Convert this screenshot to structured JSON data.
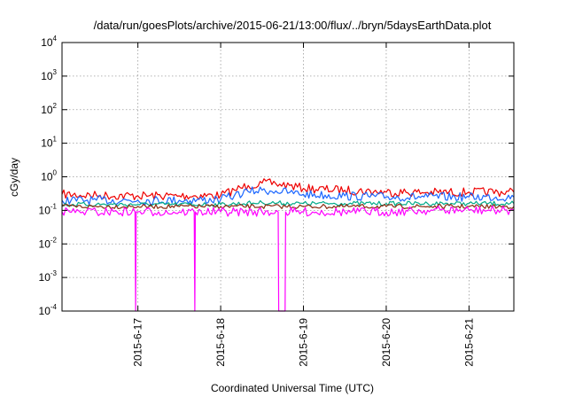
{
  "chart_data": {
    "type": "line",
    "title": "/data/run/goesPlots/archive/2015-06-21/13:00/flux/../bryn/5daysEarthData.plot",
    "xlabel": "Coordinated Universal Time (UTC)",
    "ylabel": "cGy/day",
    "yscale": "log",
    "ylim": [
      0.0001,
      10000
    ],
    "xlim": [
      "2015-06-16T02:00",
      "2015-06-21T13:00"
    ],
    "grid": true,
    "legend": "none",
    "y_ticks": [
      {
        "base": "10",
        "exp": "-4",
        "value": 0.0001
      },
      {
        "base": "10",
        "exp": "-3",
        "value": 0.001
      },
      {
        "base": "10",
        "exp": "-2",
        "value": 0.01
      },
      {
        "base": "10",
        "exp": "-1",
        "value": 0.1
      },
      {
        "base": "10",
        "exp": "0",
        "value": 1
      },
      {
        "base": "10",
        "exp": "1",
        "value": 10
      },
      {
        "base": "10",
        "exp": "2",
        "value": 100
      },
      {
        "base": "10",
        "exp": "3",
        "value": 1000
      },
      {
        "base": "10",
        "exp": "4",
        "value": 10000
      }
    ],
    "x_ticks": [
      {
        "label": "2015-6-17",
        "value": "2015-06-17T00:00"
      },
      {
        "label": "2015-6-18",
        "value": "2015-06-18T00:00"
      },
      {
        "label": "2015-6-19",
        "value": "2015-06-19T00:00"
      },
      {
        "label": "2015-6-20",
        "value": "2015-06-20T00:00"
      },
      {
        "label": "2015-6-21",
        "value": "2015-06-21T00:00"
      }
    ],
    "series": [
      {
        "color": "#ee0000",
        "x": [
          "2015-06-16T02:00",
          "2015-06-16T12:00",
          "2015-06-17T00:00",
          "2015-06-17T12:00",
          "2015-06-18T00:00",
          "2015-06-18T04:00",
          "2015-06-18T08:00",
          "2015-06-18T12:00",
          "2015-06-18T16:00",
          "2015-06-18T20:00",
          "2015-06-19T00:00",
          "2015-06-19T12:00",
          "2015-06-20T00:00",
          "2015-06-20T12:00",
          "2015-06-21T00:00",
          "2015-06-21T13:00"
        ],
        "values": [
          0.3,
          0.28,
          0.27,
          0.27,
          0.28,
          0.4,
          0.55,
          0.65,
          0.62,
          0.55,
          0.45,
          0.4,
          0.35,
          0.34,
          0.35,
          0.35
        ]
      },
      {
        "color": "#1a66ff",
        "x": [
          "2015-06-16T02:00",
          "2015-06-16T12:00",
          "2015-06-17T00:00",
          "2015-06-17T12:00",
          "2015-06-18T00:00",
          "2015-06-18T04:00",
          "2015-06-18T08:00",
          "2015-06-18T12:00",
          "2015-06-18T16:00",
          "2015-06-18T20:00",
          "2015-06-19T00:00",
          "2015-06-19T12:00",
          "2015-06-20T00:00",
          "2015-06-20T12:00",
          "2015-06-21T00:00",
          "2015-06-21T13:00"
        ],
        "values": [
          0.2,
          0.2,
          0.2,
          0.2,
          0.21,
          0.28,
          0.36,
          0.4,
          0.38,
          0.34,
          0.3,
          0.27,
          0.25,
          0.25,
          0.25,
          0.25
        ]
      },
      {
        "color": "#00aa88",
        "x": [
          "2015-06-16T02:00",
          "2015-06-16T12:00",
          "2015-06-17T00:00",
          "2015-06-17T12:00",
          "2015-06-18T00:00",
          "2015-06-18T12:00",
          "2015-06-19T00:00",
          "2015-06-19T12:00",
          "2015-06-20T00:00",
          "2015-06-20T12:00",
          "2015-06-21T00:00",
          "2015-06-21T13:00"
        ],
        "values": [
          0.15,
          0.15,
          0.15,
          0.15,
          0.15,
          0.17,
          0.16,
          0.16,
          0.16,
          0.16,
          0.16,
          0.16
        ]
      },
      {
        "color": "#8b2a10",
        "x": [
          "2015-06-16T02:00",
          "2015-06-16T12:00",
          "2015-06-17T00:00",
          "2015-06-17T12:00",
          "2015-06-18T00:00",
          "2015-06-18T12:00",
          "2015-06-19T00:00",
          "2015-06-19T12:00",
          "2015-06-20T00:00",
          "2015-06-20T12:00",
          "2015-06-21T00:00",
          "2015-06-21T13:00"
        ],
        "values": [
          0.13,
          0.13,
          0.13,
          0.13,
          0.13,
          0.13,
          0.13,
          0.13,
          0.13,
          0.13,
          0.13,
          0.13
        ]
      },
      {
        "color": "#ff00ff",
        "x": [
          "2015-06-16T02:00",
          "2015-06-16T08:00",
          "2015-06-16T12:00",
          "2015-06-16T18:00",
          "2015-06-16T23:10",
          "2015-06-16T23:20",
          "2015-06-16T23:30",
          "2015-06-17T06:00",
          "2015-06-17T12:00",
          "2015-06-17T16:20",
          "2015-06-17T16:30",
          "2015-06-17T16:40",
          "2015-06-18T00:00",
          "2015-06-18T12:00",
          "2015-06-18T16:40",
          "2015-06-18T16:50",
          "2015-06-18T18:40",
          "2015-06-18T18:50",
          "2015-06-19T00:00",
          "2015-06-19T12:00",
          "2015-06-20T00:00",
          "2015-06-20T12:00",
          "2015-06-21T00:00",
          "2015-06-21T13:00"
        ],
        "values": [
          0.09,
          0.09,
          0.09,
          0.09,
          0.09,
          0.0001,
          0.09,
          0.09,
          0.09,
          0.09,
          0.0001,
          0.09,
          0.09,
          0.09,
          0.09,
          0.0001,
          0.0001,
          0.09,
          0.09,
          0.09,
          0.09,
          0.1,
          0.1,
          0.1
        ]
      }
    ]
  }
}
